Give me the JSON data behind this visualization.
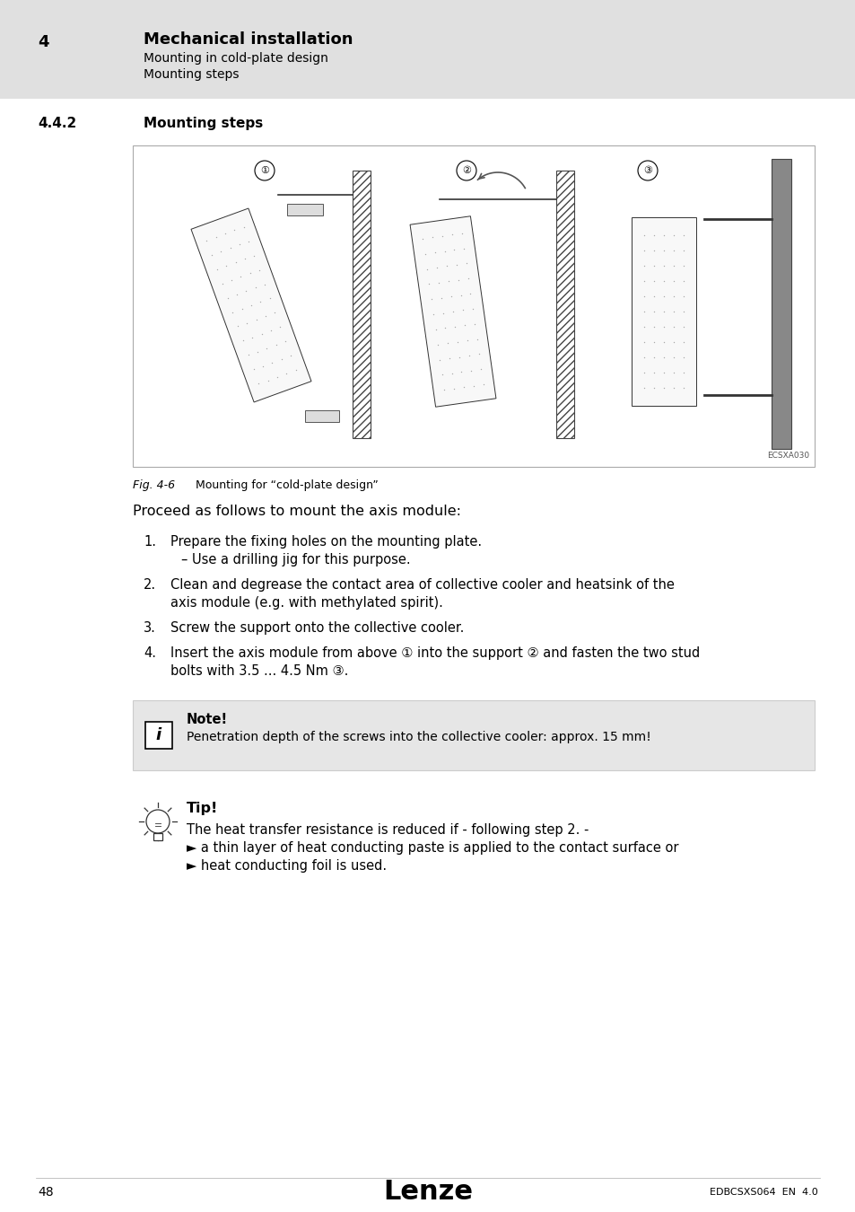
{
  "page_bg": "#ffffff",
  "header_bg": "#e0e0e0",
  "chapter_number": "4",
  "chapter_title": "Mechanical installation",
  "chapter_sub1": "Mounting in cold-plate design",
  "chapter_sub2": "Mounting steps",
  "section_number": "4.4.2",
  "section_title": "Mounting steps",
  "fig_label": "Fig. 4-6",
  "fig_caption": "Mounting for “cold-plate design”",
  "fig_code": "ECSXA030",
  "intro_text": "Proceed as follows to mount the axis module:",
  "note_title": "Note!",
  "note_text": "Penetration depth of the screws into the collective cooler: approx. 15 mm!",
  "tip_title": "Tip!",
  "tip_line1": "The heat transfer resistance is reduced if - following step 2. -",
  "tip_line2": "► a thin layer of heat conducting paste is applied to the contact surface or",
  "tip_line3": "► heat conducting foil is used.",
  "footer_page": "48",
  "footer_logo": "Lenze",
  "footer_code": "EDBCSXS064  EN  4.0",
  "step1_a": "Prepare the fixing holes on the mounting plate.",
  "step1_b": "– Use a drilling jig for this purpose.",
  "step2_a": "Clean and degrease the contact area of collective cooler and heatsink of the",
  "step2_b": "axis module (e.g. with methylated spirit).",
  "step3": "Screw the support onto the collective cooler.",
  "step4_a": "Insert the axis module from above ① into the support ② and fasten the two stud",
  "step4_b": "bolts with 3.5 ... 4.5 Nm ③."
}
